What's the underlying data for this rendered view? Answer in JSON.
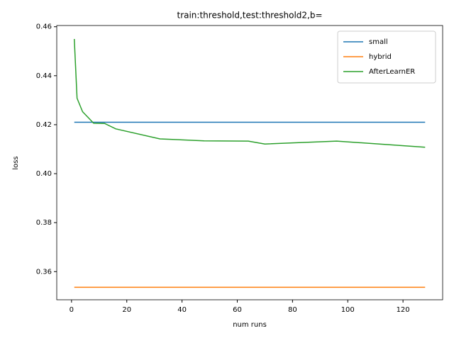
{
  "chart_data": {
    "type": "line",
    "title": "train:threshold,test:threshold2,b=",
    "x_label": "num runs",
    "y_label": "loss",
    "x": [
      1,
      2,
      4,
      8,
      12,
      16,
      32,
      48,
      64,
      70,
      96,
      128
    ],
    "series": [
      {
        "name": "small",
        "color": "#1f77b4",
        "values": [
          0.421,
          0.421,
          0.421,
          0.421,
          0.421,
          0.421,
          0.421,
          0.421,
          0.421,
          0.421,
          0.421,
          0.421
        ]
      },
      {
        "name": "hybrid",
        "color": "#ff7f0e",
        "values": [
          0.3536,
          0.3536,
          0.3536,
          0.3536,
          0.3536,
          0.3536,
          0.3536,
          0.3536,
          0.3536,
          0.3536,
          0.3536,
          0.3536
        ]
      },
      {
        "name": "AfterLearnER",
        "color": "#2ca02c",
        "values": [
          0.455,
          0.4308,
          0.4253,
          0.4206,
          0.4205,
          0.4183,
          0.4142,
          0.4134,
          0.4133,
          0.4121,
          0.4133,
          0.4108
        ]
      }
    ],
    "xlim": [
      -5.35,
      134.35
    ],
    "xticks": [
      0,
      20,
      40,
      60,
      80,
      100,
      120
    ],
    "ylim": [
      0.3485,
      0.4605
    ],
    "yticks": [
      {
        "value": 0.36,
        "label": "0.36"
      },
      {
        "value": 0.38,
        "label": "0.38"
      },
      {
        "value": 0.4,
        "label": "0.40"
      },
      {
        "value": 0.42,
        "label": "0.42"
      },
      {
        "value": 0.44,
        "label": "0.44"
      },
      {
        "value": 0.46,
        "label": "0.46"
      }
    ],
    "legend": "upper right"
  }
}
